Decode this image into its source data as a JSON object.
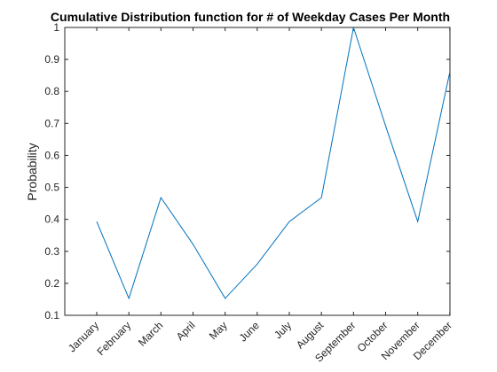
{
  "chart_data": {
    "type": "line",
    "title": "Cumulative Distribution function for # of Weekday Cases Per Month",
    "xlabel": "",
    "ylabel": "Probability",
    "categories": [
      "January",
      "February",
      "March",
      "April",
      "May",
      "June",
      "July",
      "August",
      "September",
      "October",
      "November",
      "December"
    ],
    "series": [
      {
        "color": "#0072bd",
        "values": [
          0.393,
          0.153,
          0.468,
          0.322,
          0.153,
          0.26,
          0.393,
          0.468,
          1.0,
          0.692,
          0.393,
          0.86
        ]
      }
    ],
    "ylim": [
      0.1,
      1.0
    ],
    "yticks": [
      "0.1",
      "0.2",
      "0.3",
      "0.4",
      "0.5",
      "0.6",
      "0.7",
      "0.8",
      "0.9",
      "1"
    ],
    "grid": false,
    "box": true
  }
}
